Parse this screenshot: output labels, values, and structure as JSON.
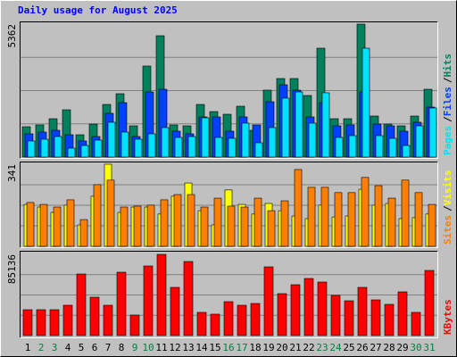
{
  "chart_data": {
    "type": "bar",
    "title": "Daily usage for August 2025",
    "separator": "/",
    "categories": [
      "1",
      "2",
      "3",
      "4",
      "5",
      "6",
      "7",
      "8",
      "9",
      "10",
      "11",
      "12",
      "13",
      "14",
      "15",
      "16",
      "17",
      "18",
      "19",
      "20",
      "21",
      "22",
      "23",
      "24",
      "25",
      "26",
      "27",
      "28",
      "29",
      "30",
      "31"
    ],
    "highlight_categories": [
      "2",
      "3",
      "9",
      "10",
      "16",
      "17",
      "23",
      "24",
      "30",
      "31"
    ],
    "label_color": "#000000",
    "highlight_color": "#008040",
    "grid": true,
    "panels": [
      {
        "ylim": [
          0,
          5362
        ],
        "yticks": [
          5362
        ],
        "series": [
          {
            "name": "Hits",
            "color": "#00805c",
            "values": [
              1224,
              1296,
              1547,
              1907,
              900,
              1331,
              2123,
              2555,
              1260,
              3671,
              4894,
              1296,
              1260,
              2123,
              1835,
              1727,
              2051,
              1080,
              2699,
              3167,
              3167,
              2483,
              4390,
              1547,
              1547,
              5362,
              1655,
              1331,
              1260,
              1655,
              2735
            ]
          },
          {
            "name": "Files",
            "color": "#0040ff",
            "values": [
              936,
              1008,
              1080,
              900,
              648,
              828,
              1764,
              2195,
              828,
              2627,
              2735,
              1044,
              936,
              1619,
              1619,
              1044,
              1619,
              1296,
              2231,
              2915,
              2699,
              1619,
              2195,
              1260,
              1296,
              2627,
              1331,
              1260,
              1044,
              1404,
              2015
            ]
          },
          {
            "name": "Pages",
            "color": "#00e0ff",
            "values": [
              648,
              720,
              828,
              360,
              468,
              684,
              1404,
              1008,
              720,
              936,
              1188,
              792,
              828,
              1584,
              792,
              756,
              1368,
              576,
              1188,
              2376,
              2627,
              1368,
              2592,
              792,
              864,
              4390,
              864,
              756,
              468,
              1260,
              1979
            ]
          }
        ]
      },
      {
        "ylim": [
          0,
          341
        ],
        "yticks": [
          341
        ],
        "series": [
          {
            "name": "Visits",
            "color": "#ffff00",
            "values": [
              174,
              163,
              141,
              171,
              89,
              208,
              341,
              141,
              163,
              163,
              134,
              208,
              263,
              148,
              89,
              234,
              174,
              134,
              178,
              148,
              126,
              115,
              171,
              122,
              126,
              237,
              171,
              178,
              115,
              119,
              134
            ]
          },
          {
            "name": "Sites",
            "color": "#ff8000",
            "values": [
              182,
              174,
              163,
              193,
              111,
              256,
              275,
              163,
              167,
              171,
              193,
              215,
              215,
              163,
              200,
              167,
              163,
              200,
              148,
              189,
              319,
              245,
              245,
              223,
              223,
              286,
              252,
              200,
              275,
              223,
              174
            ]
          }
        ]
      },
      {
        "ylim": [
          0,
          85136
        ],
        "yticks": [
          85136
        ],
        "series": [
          {
            "name": "KBytes",
            "color": "#ff0000",
            "values": [
              27132,
              27132,
              27132,
              31810,
              64556,
              40231,
              31810,
              66428,
              21519,
              72977,
              85136,
              50522,
              77655,
              24326,
              22454,
              35553,
              31810,
              33682,
              72041,
              43973,
              53329,
              59878,
              56136,
              42102,
              36488,
              50522,
              37424,
              32746,
              45844,
              24326,
              68299
            ]
          }
        ]
      }
    ]
  }
}
